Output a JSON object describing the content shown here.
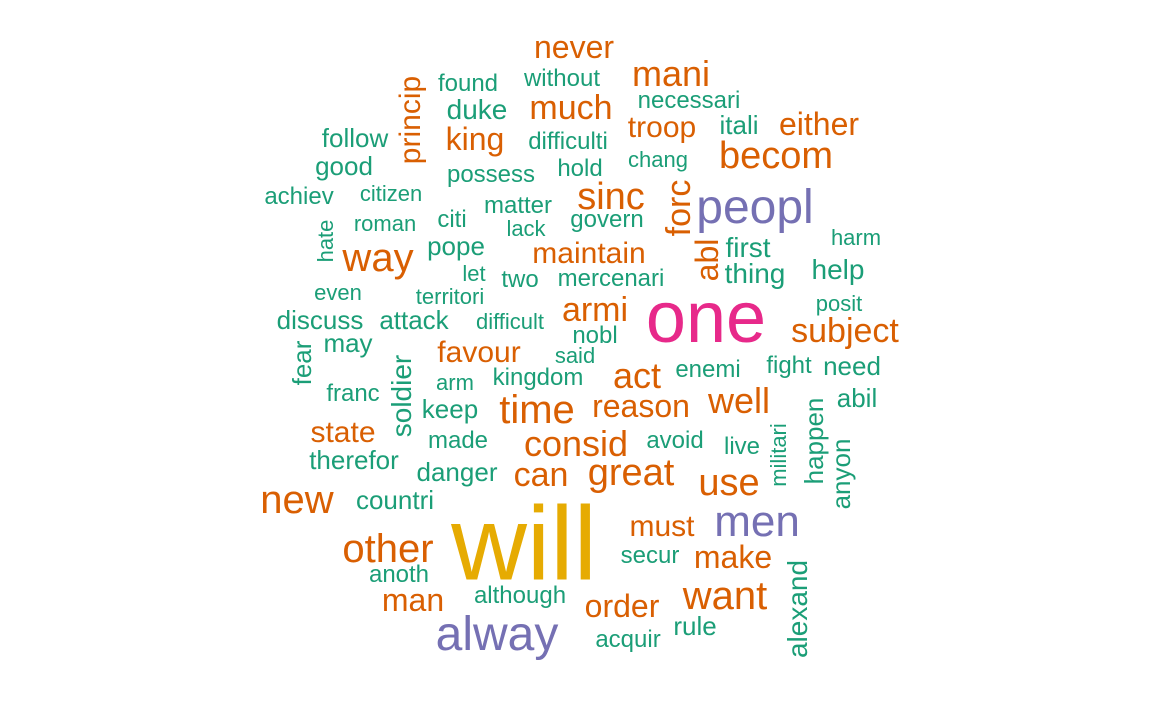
{
  "colors": {
    "orange": "#d95f02",
    "green": "#1b9e77",
    "purple": "#7570b3",
    "magenta": "#e7298a",
    "gold": "#e6ab02"
  },
  "words": [
    "will",
    "one",
    "peopl",
    "alway",
    "men",
    "never",
    "mani",
    "much",
    "becom",
    "either",
    "troop",
    "king",
    "sinc",
    "forc",
    "way",
    "maintain",
    "abl",
    "armi",
    "subject",
    "act",
    "time",
    "well",
    "reason",
    "favour",
    "consid",
    "state",
    "great",
    "can",
    "use",
    "new",
    "must",
    "other",
    "make",
    "want",
    "man",
    "order",
    "found",
    "without",
    "necessari",
    "princip",
    "duke",
    "itali",
    "follow",
    "difficulti",
    "chang",
    "good",
    "hold",
    "possess",
    "achiev",
    "citizen",
    "matter",
    "roman",
    "citi",
    "govern",
    "lack",
    "hate",
    "harm",
    "pope",
    "first",
    "let",
    "two",
    "mercenari",
    "thing",
    "help",
    "even",
    "territori",
    "posit",
    "discuss",
    "attack",
    "difficult",
    "nobl",
    "may",
    "fear",
    "said",
    "need",
    "soldier",
    "fight",
    "enemi",
    "franc",
    "arm",
    "kingdom",
    "abil",
    "keep",
    "avoid",
    "live",
    "militari",
    "happen",
    "made",
    "anyon",
    "therefor",
    "danger",
    "countri",
    "secur",
    "anoth",
    "although",
    "alexand",
    "rule",
    "acquir"
  ]
}
